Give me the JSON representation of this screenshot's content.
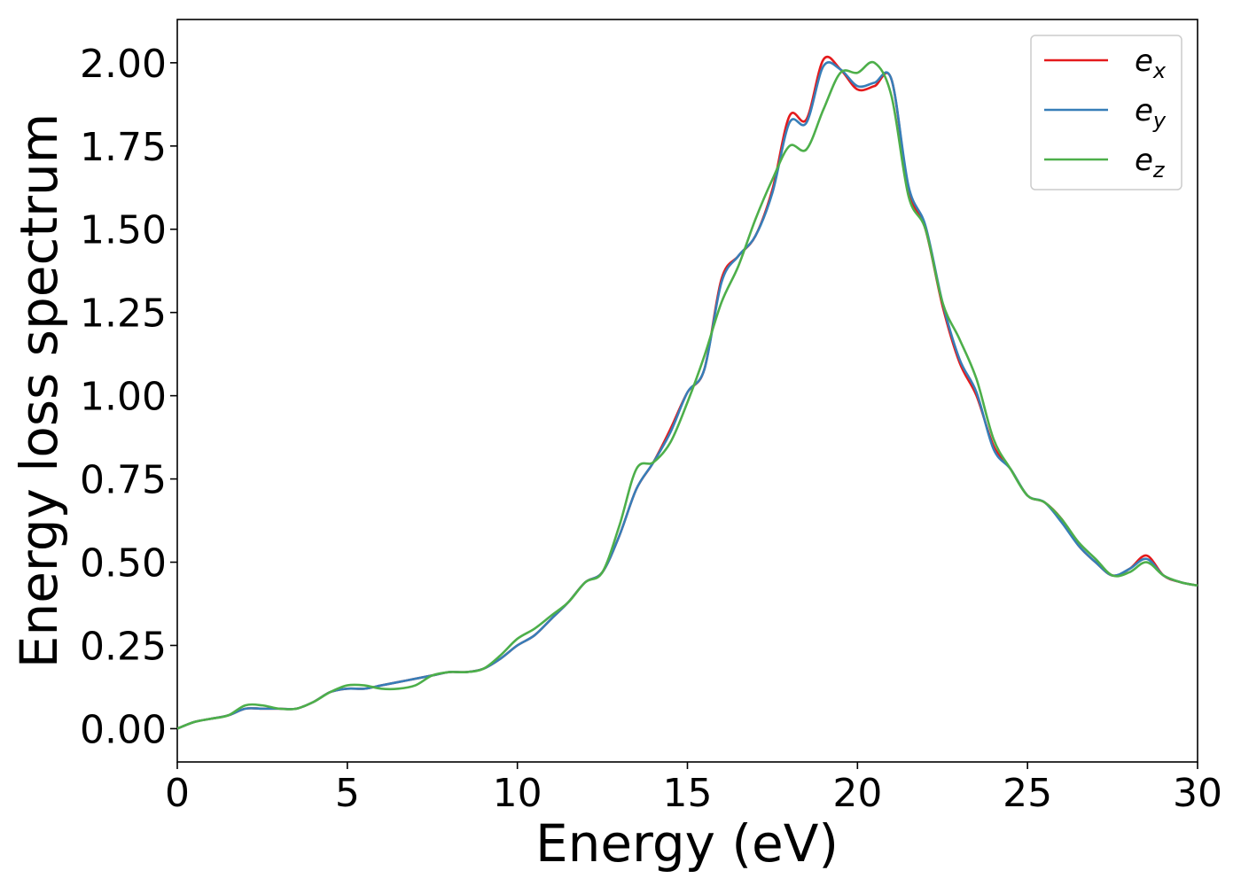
{
  "chart_data": {
    "type": "line",
    "title": "",
    "xlabel": "Energy (eV)",
    "ylabel": "Energy loss spectrum",
    "xlim": [
      0,
      30
    ],
    "ylim": [
      -0.1,
      2.13
    ],
    "xticks": [
      0,
      5,
      10,
      15,
      20,
      25,
      30
    ],
    "xtick_labels": [
      "0",
      "5",
      "10",
      "15",
      "20",
      "25",
      "30"
    ],
    "yticks": [
      0,
      0.25,
      0.5,
      0.75,
      1.0,
      1.25,
      1.5,
      1.75,
      2.0
    ],
    "ytick_labels": [
      "0.00",
      "0.25",
      "0.50",
      "0.75",
      "1.00",
      "1.25",
      "1.50",
      "1.75",
      "2.00"
    ],
    "grid": false,
    "legend_position": "top-right",
    "series": [
      {
        "name": "e_x",
        "legend_base": "e",
        "legend_sub": "x",
        "color": "#e41a1c",
        "x": [
          0,
          0.5,
          1,
          1.5,
          2,
          2.5,
          3,
          3.5,
          4,
          4.5,
          5,
          5.5,
          6,
          6.5,
          7,
          7.5,
          8,
          8.5,
          9,
          9.5,
          10,
          10.5,
          11,
          11.5,
          12,
          12.5,
          13,
          13.5,
          14,
          14.5,
          15,
          15.5,
          16,
          16.5,
          17,
          17.5,
          18,
          18.5,
          19,
          19.5,
          20,
          20.5,
          21,
          21.5,
          22,
          22.5,
          23,
          23.5,
          24,
          24.5,
          25,
          25.5,
          26,
          26.5,
          27,
          27.5,
          28,
          28.5,
          29,
          29.5,
          30
        ],
        "y": [
          0.0,
          0.02,
          0.03,
          0.04,
          0.06,
          0.06,
          0.06,
          0.06,
          0.08,
          0.11,
          0.12,
          0.12,
          0.13,
          0.14,
          0.15,
          0.16,
          0.17,
          0.17,
          0.18,
          0.21,
          0.25,
          0.28,
          0.33,
          0.38,
          0.44,
          0.47,
          0.58,
          0.72,
          0.8,
          0.9,
          1.01,
          1.08,
          1.35,
          1.42,
          1.48,
          1.62,
          1.84,
          1.83,
          2.01,
          1.98,
          1.92,
          1.93,
          1.95,
          1.62,
          1.5,
          1.27,
          1.1,
          1.0,
          0.85,
          0.78,
          0.7,
          0.68,
          0.63,
          0.55,
          0.5,
          0.46,
          0.48,
          0.52,
          0.46,
          0.44,
          0.43
        ]
      },
      {
        "name": "e_y",
        "legend_base": "e",
        "legend_sub": "y",
        "color": "#377eb8",
        "x": [
          0,
          0.5,
          1,
          1.5,
          2,
          2.5,
          3,
          3.5,
          4,
          4.5,
          5,
          5.5,
          6,
          6.5,
          7,
          7.5,
          8,
          8.5,
          9,
          9.5,
          10,
          10.5,
          11,
          11.5,
          12,
          12.5,
          13,
          13.5,
          14,
          14.5,
          15,
          15.5,
          16,
          16.5,
          17,
          17.5,
          18,
          18.5,
          19,
          19.5,
          20,
          20.5,
          21,
          21.5,
          22,
          22.5,
          23,
          23.5,
          24,
          24.5,
          25,
          25.5,
          26,
          26.5,
          27,
          27.5,
          28,
          28.5,
          29,
          29.5,
          30
        ],
        "y": [
          0.0,
          0.02,
          0.03,
          0.04,
          0.06,
          0.06,
          0.06,
          0.06,
          0.08,
          0.11,
          0.12,
          0.12,
          0.13,
          0.14,
          0.15,
          0.16,
          0.17,
          0.17,
          0.18,
          0.21,
          0.25,
          0.28,
          0.33,
          0.38,
          0.44,
          0.47,
          0.58,
          0.72,
          0.8,
          0.89,
          1.01,
          1.08,
          1.34,
          1.42,
          1.48,
          1.61,
          1.82,
          1.82,
          1.99,
          1.98,
          1.93,
          1.94,
          1.95,
          1.63,
          1.51,
          1.28,
          1.11,
          1.01,
          0.84,
          0.78,
          0.7,
          0.68,
          0.62,
          0.55,
          0.5,
          0.46,
          0.48,
          0.51,
          0.46,
          0.44,
          0.43
        ]
      },
      {
        "name": "e_z",
        "legend_base": "e",
        "legend_sub": "z",
        "color": "#4daf4a",
        "x": [
          0,
          0.5,
          1,
          1.5,
          2,
          2.5,
          3,
          3.5,
          4,
          4.5,
          5,
          5.5,
          6,
          6.5,
          7,
          7.5,
          8,
          8.5,
          9,
          9.5,
          10,
          10.5,
          11,
          11.5,
          12,
          12.5,
          13,
          13.5,
          14,
          14.5,
          15,
          15.5,
          16,
          16.5,
          17,
          17.5,
          18,
          18.5,
          19,
          19.5,
          20,
          20.5,
          21,
          21.5,
          22,
          22.5,
          23,
          23.5,
          24,
          24.5,
          25,
          25.5,
          26,
          26.5,
          27,
          27.5,
          28,
          28.5,
          29,
          29.5,
          30
        ],
        "y": [
          0.0,
          0.02,
          0.03,
          0.04,
          0.07,
          0.07,
          0.06,
          0.06,
          0.08,
          0.11,
          0.13,
          0.13,
          0.12,
          0.12,
          0.13,
          0.16,
          0.17,
          0.17,
          0.18,
          0.22,
          0.27,
          0.3,
          0.34,
          0.38,
          0.44,
          0.47,
          0.61,
          0.78,
          0.8,
          0.86,
          0.98,
          1.12,
          1.28,
          1.39,
          1.53,
          1.65,
          1.75,
          1.74,
          1.86,
          1.97,
          1.97,
          2.0,
          1.9,
          1.6,
          1.5,
          1.28,
          1.17,
          1.05,
          0.87,
          0.78,
          0.7,
          0.68,
          0.63,
          0.56,
          0.51,
          0.46,
          0.47,
          0.5,
          0.46,
          0.44,
          0.43
        ]
      }
    ]
  }
}
